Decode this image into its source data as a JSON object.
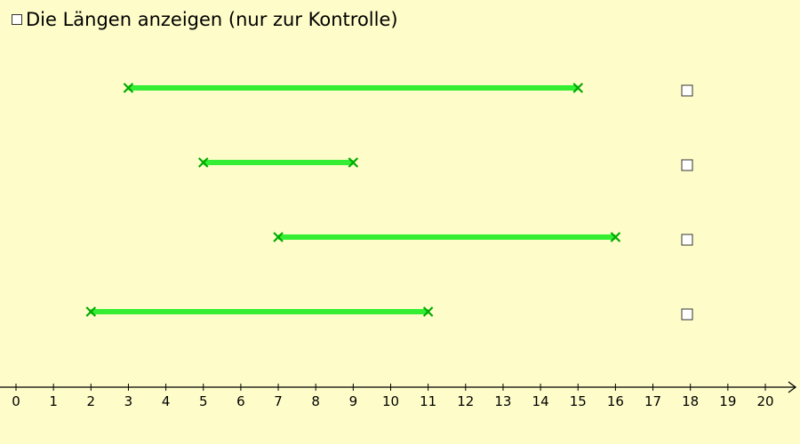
{
  "checkbox": {
    "label": "Die Längen anzeigen (nur zur Kontrolle)"
  },
  "number_line": {
    "ticks": [
      0,
      1,
      2,
      3,
      4,
      5,
      6,
      7,
      8,
      9,
      10,
      11,
      12,
      13,
      14,
      15,
      16,
      17,
      18,
      19,
      20
    ]
  },
  "segments": [
    {
      "start": 3,
      "end": 15
    },
    {
      "start": 5,
      "end": 9
    },
    {
      "start": 7,
      "end": 16
    },
    {
      "start": 2,
      "end": 11
    }
  ]
}
